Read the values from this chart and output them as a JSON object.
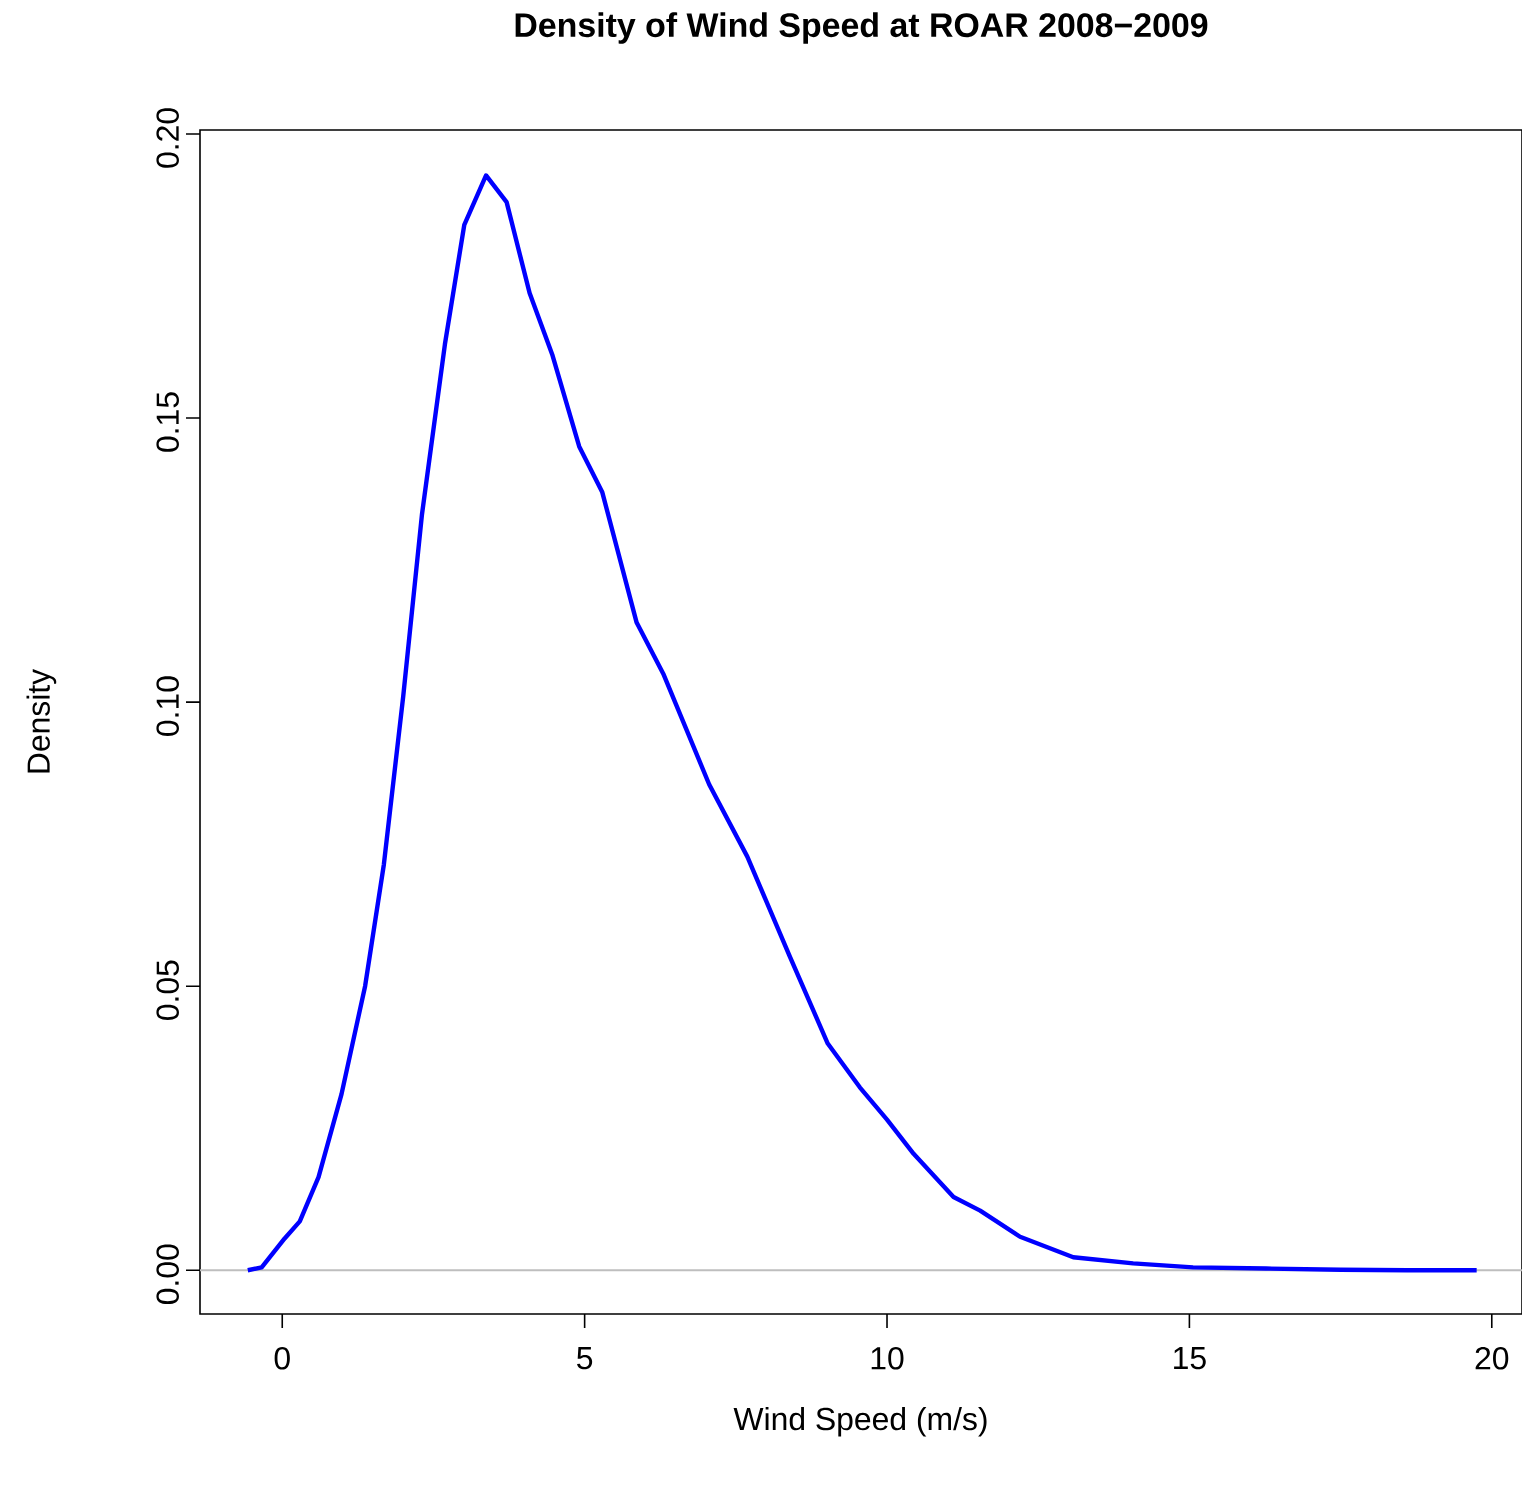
{
  "chart_data": {
    "type": "line",
    "title": "Density of Wind Speed at ROAR 2008−2009",
    "xlabel": "Wind Speed (m/s)",
    "ylabel": "Density",
    "x": [
      -0.57,
      -0.34,
      0.04,
      0.29,
      0.6,
      0.98,
      1.37,
      1.68,
      2.0,
      2.31,
      2.69,
      3.01,
      3.37,
      3.71,
      4.09,
      4.47,
      4.91,
      5.29,
      5.86,
      6.3,
      7.06,
      7.69,
      8.39,
      9.02,
      9.55,
      10.0,
      10.44,
      11.1,
      11.54,
      12.2,
      13.08,
      14.07,
      15.06,
      16.27,
      17.5,
      18.6,
      19.75
    ],
    "values": [
      0.0,
      0.0005,
      0.0056,
      0.0086,
      0.0164,
      0.031,
      0.05,
      0.0714,
      0.101,
      0.133,
      0.163,
      0.184,
      0.1927,
      0.188,
      0.172,
      0.161,
      0.145,
      0.137,
      0.114,
      0.105,
      0.0855,
      0.0728,
      0.0553,
      0.0399,
      0.0322,
      0.0265,
      0.0205,
      0.0129,
      0.0105,
      0.0059,
      0.0023,
      0.0012,
      0.0005,
      0.0003,
      0.0001,
      0.0,
      0.0
    ],
    "color": "#0000ff",
    "xlim": [
      -1.36,
      20.5
    ],
    "ylim": [
      -0.0077,
      0.2007
    ],
    "xticks": [
      0,
      5,
      10,
      15,
      20
    ],
    "yticks": [
      {
        "value": 0,
        "label": "0.00"
      },
      {
        "value": 0.05,
        "label": "0.05"
      },
      {
        "value": 0.1,
        "label": "0.10"
      },
      {
        "value": 0.15,
        "label": "0.15"
      },
      {
        "value": 0.2,
        "label": "0.20"
      }
    ],
    "ref_lines": [
      {
        "axis": "y",
        "value": 0,
        "color": "#bebebe"
      }
    ]
  }
}
